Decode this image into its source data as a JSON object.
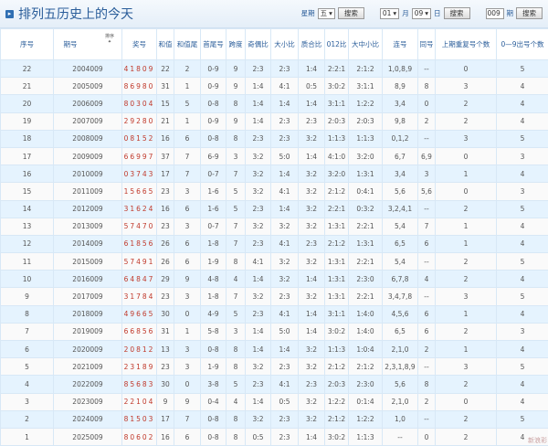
{
  "header": {
    "title": "排列五历史上的今天",
    "weekday_label": "星期",
    "weekday_value": "五",
    "search_label": "搜索",
    "month_value": "01",
    "month_label": "月",
    "day_value": "09",
    "day_label": "日",
    "issue_value": "009",
    "issue_label": "期",
    "sort_label": "排序"
  },
  "columns": [
    "序号",
    "期号",
    "奖号",
    "和值",
    "和值尾",
    "首尾号",
    "跨度",
    "奇偶比",
    "大小比",
    "质合比",
    "012比",
    "大中小比",
    "连号",
    "同号",
    "上期重复号个数",
    "0—9出号个数"
  ],
  "rows": [
    [
      "22",
      "2004009",
      "41809",
      "22",
      "2",
      "0-9",
      "9",
      "2:3",
      "2:3",
      "1:4",
      "2:2:1",
      "2:1:2",
      "1,0,8,9",
      "--",
      "0",
      "5"
    ],
    [
      "21",
      "2005009",
      "86980",
      "31",
      "1",
      "0-9",
      "9",
      "1:4",
      "4:1",
      "0:5",
      "3:0:2",
      "3:1:1",
      "8,9",
      "8",
      "3",
      "4"
    ],
    [
      "20",
      "2006009",
      "80304",
      "15",
      "5",
      "0-8",
      "8",
      "1:4",
      "1:4",
      "1:4",
      "3:1:1",
      "1:2:2",
      "3,4",
      "0",
      "2",
      "4"
    ],
    [
      "19",
      "2007009",
      "29280",
      "21",
      "1",
      "0-9",
      "9",
      "1:4",
      "2:3",
      "2:3",
      "2:0:3",
      "2:0:3",
      "9,8",
      "2",
      "2",
      "4"
    ],
    [
      "18",
      "2008009",
      "08152",
      "16",
      "6",
      "0-8",
      "8",
      "2:3",
      "2:3",
      "3:2",
      "1:1:3",
      "1:1:3",
      "0,1,2",
      "--",
      "3",
      "5"
    ],
    [
      "17",
      "2009009",
      "66997",
      "37",
      "7",
      "6-9",
      "3",
      "3:2",
      "5:0",
      "1:4",
      "4:1:0",
      "3:2:0",
      "6,7",
      "6,9",
      "0",
      "3"
    ],
    [
      "16",
      "2010009",
      "03743",
      "17",
      "7",
      "0-7",
      "7",
      "3:2",
      "1:4",
      "3:2",
      "3:2:0",
      "1:3:1",
      "3,4",
      "3",
      "1",
      "4"
    ],
    [
      "15",
      "2011009",
      "15665",
      "23",
      "3",
      "1-6",
      "5",
      "3:2",
      "4:1",
      "3:2",
      "2:1:2",
      "0:4:1",
      "5,6",
      "5,6",
      "0",
      "3"
    ],
    [
      "14",
      "2012009",
      "31624",
      "16",
      "6",
      "1-6",
      "5",
      "2:3",
      "1:4",
      "3:2",
      "2:2:1",
      "0:3:2",
      "3,2,4,1",
      "--",
      "2",
      "5"
    ],
    [
      "13",
      "2013009",
      "57470",
      "23",
      "3",
      "0-7",
      "7",
      "3:2",
      "3:2",
      "3:2",
      "1:3:1",
      "2:2:1",
      "5,4",
      "7",
      "1",
      "4"
    ],
    [
      "12",
      "2014009",
      "61856",
      "26",
      "6",
      "1-8",
      "7",
      "2:3",
      "4:1",
      "2:3",
      "2:1:2",
      "1:3:1",
      "6,5",
      "6",
      "1",
      "4"
    ],
    [
      "11",
      "2015009",
      "57491",
      "26",
      "6",
      "1-9",
      "8",
      "4:1",
      "3:2",
      "3:2",
      "1:3:1",
      "2:2:1",
      "5,4",
      "--",
      "2",
      "5"
    ],
    [
      "10",
      "2016009",
      "64847",
      "29",
      "9",
      "4-8",
      "4",
      "1:4",
      "3:2",
      "1:4",
      "1:3:1",
      "2:3:0",
      "6,7,8",
      "4",
      "2",
      "4"
    ],
    [
      "9",
      "2017009",
      "31784",
      "23",
      "3",
      "1-8",
      "7",
      "3:2",
      "2:3",
      "3:2",
      "1:3:1",
      "2:2:1",
      "3,4,7,8",
      "--",
      "3",
      "5"
    ],
    [
      "8",
      "2018009",
      "49665",
      "30",
      "0",
      "4-9",
      "5",
      "2:3",
      "4:1",
      "1:4",
      "3:1:1",
      "1:4:0",
      "4,5,6",
      "6",
      "1",
      "4"
    ],
    [
      "7",
      "2019009",
      "66856",
      "31",
      "1",
      "5-8",
      "3",
      "1:4",
      "5:0",
      "1:4",
      "3:0:2",
      "1:4:0",
      "6,5",
      "6",
      "2",
      "3"
    ],
    [
      "6",
      "2020009",
      "20812",
      "13",
      "3",
      "0-8",
      "8",
      "1:4",
      "1:4",
      "3:2",
      "1:1:3",
      "1:0:4",
      "2,1,0",
      "2",
      "1",
      "4"
    ],
    [
      "5",
      "2021009",
      "23189",
      "23",
      "3",
      "1-9",
      "8",
      "3:2",
      "2:3",
      "3:2",
      "2:1:2",
      "2:1:2",
      "2,3,1,8,9",
      "--",
      "3",
      "5"
    ],
    [
      "4",
      "2022009",
      "85683",
      "30",
      "0",
      "3-8",
      "5",
      "2:3",
      "4:1",
      "2:3",
      "2:0:3",
      "2:3:0",
      "5,6",
      "8",
      "2",
      "4"
    ],
    [
      "3",
      "2023009",
      "22104",
      "9",
      "9",
      "0-4",
      "4",
      "1:4",
      "0:5",
      "3:2",
      "1:2:2",
      "0:1:4",
      "2,1,0",
      "2",
      "0",
      "4"
    ],
    [
      "2",
      "2024009",
      "81503",
      "17",
      "7",
      "0-8",
      "8",
      "3:2",
      "2:3",
      "3:2",
      "2:1:2",
      "1:2:2",
      "1,0",
      "--",
      "2",
      "5"
    ],
    [
      "1",
      "2025009",
      "80602",
      "16",
      "6",
      "0-8",
      "8",
      "0:5",
      "2:3",
      "1:4",
      "3:0:2",
      "1:1:3",
      "--",
      "0",
      "2",
      "4"
    ]
  ],
  "colors": {
    "accent": "#2a5d9a",
    "winning_number": "#c0392b",
    "row_alt": "#e5f3fe"
  },
  "watermark": "新浪彩"
}
